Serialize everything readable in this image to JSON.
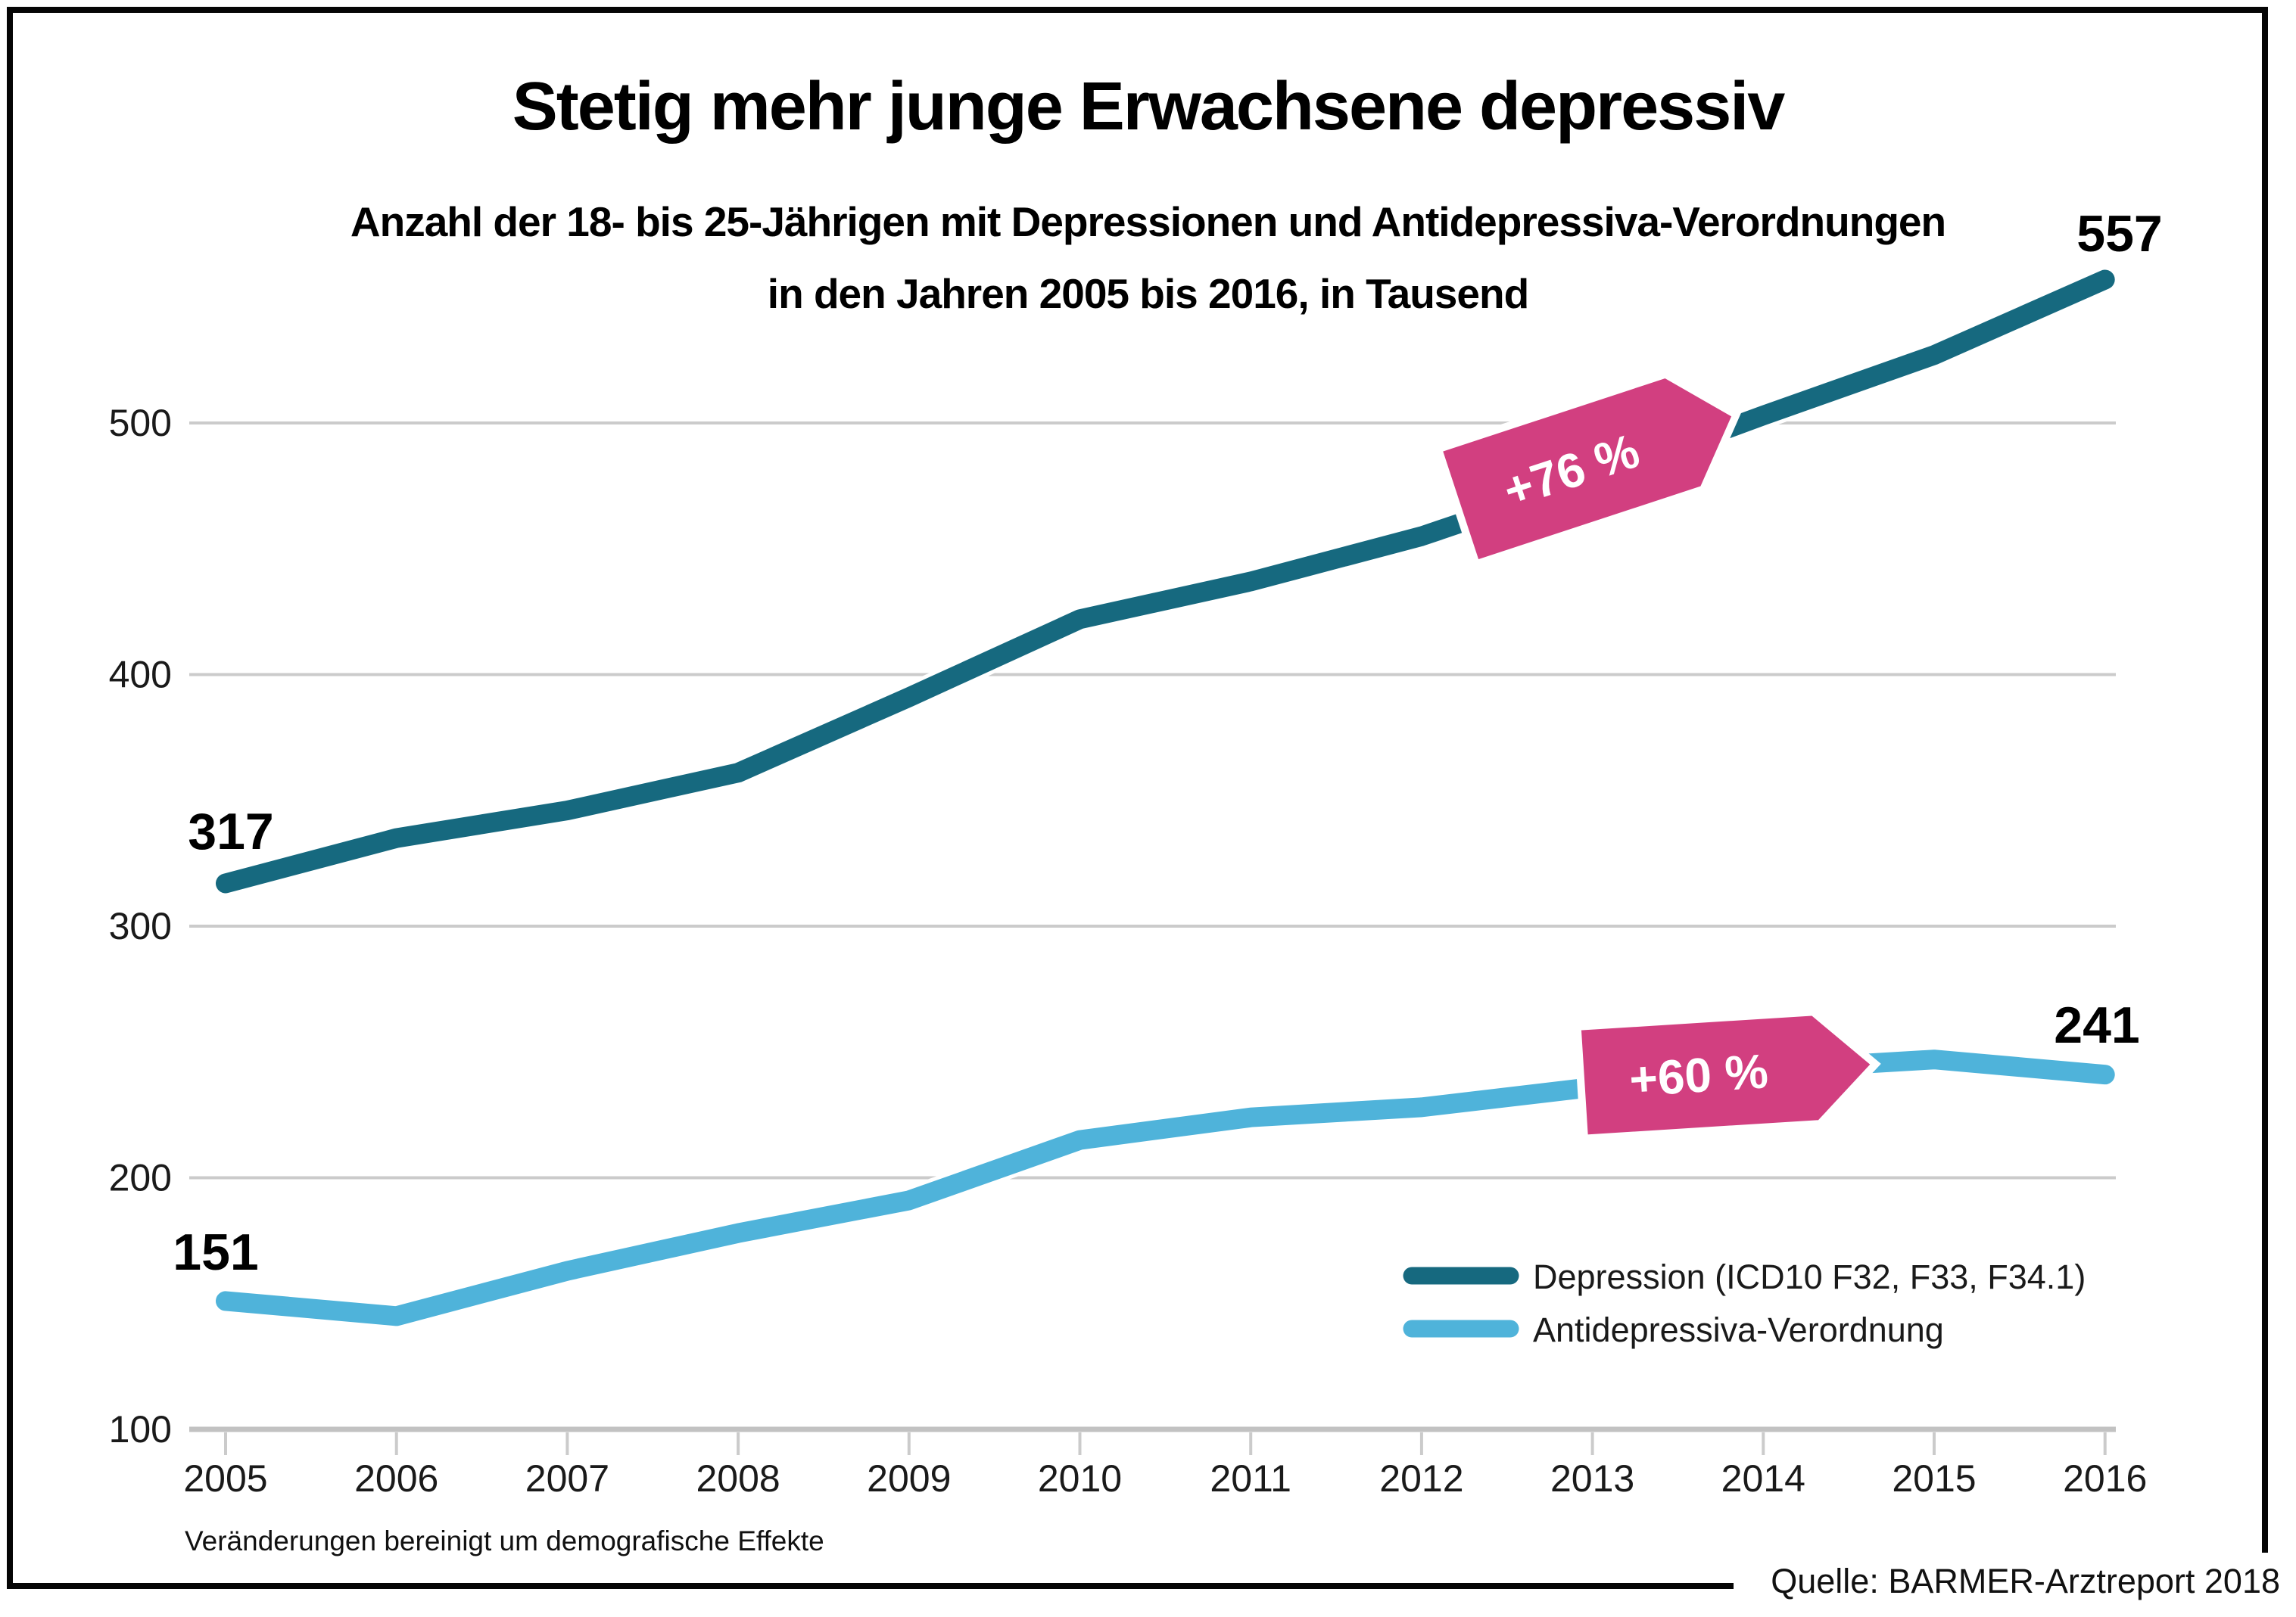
{
  "title": "Stetig mehr junge Erwachsene depressiv",
  "subtitle_line1": "Anzahl der 18- bis 25-Jährigen mit Depressionen und Antidepressiva-Verordnungen",
  "subtitle_line2": "in den Jahren 2005 bis 2016, in Tausend",
  "footnote": "Veränderungen bereinigt um demografische Effekte",
  "source": "Quelle: BARMER-Arztreport 2018",
  "colors": {
    "depression_line": "#16697f",
    "antidepressiva_line": "#4fb3da",
    "badge": "#d23f80",
    "gridline": "#cbcbcb",
    "axis_line": "#c2c2c2"
  },
  "chart_data": {
    "type": "line",
    "x": [
      2005,
      2006,
      2007,
      2008,
      2009,
      2010,
      2011,
      2012,
      2013,
      2014,
      2015,
      2016
    ],
    "series": [
      {
        "name": "Depression (ICD10 F32, F33, F34.1)",
        "color": "#16697f",
        "values": [
          317,
          335,
          346,
          361,
          391,
          422,
          437,
          455,
          478,
          503,
          527,
          557
        ],
        "start_label": "317",
        "end_label": "557"
      },
      {
        "name": "Antidepressiva-Verordnung",
        "color": "#4fb3da",
        "values": [
          151,
          145,
          163,
          178,
          191,
          215,
          224,
          228,
          236,
          243,
          247,
          241
        ],
        "start_label": "151",
        "end_label": "241"
      }
    ],
    "ylim": [
      100,
      580
    ],
    "yticks": [
      100,
      200,
      300,
      400,
      500
    ],
    "grid": true,
    "legend_position": "bottom-right",
    "annotations": [
      {
        "text": "+76 %",
        "series": "Depression (ICD10 F32, F33, F34.1)",
        "meaning": "increase 2005-2016"
      },
      {
        "text": "+60 %",
        "series": "Antidepressiva-Verordnung",
        "meaning": "increase 2005-2016"
      }
    ]
  }
}
